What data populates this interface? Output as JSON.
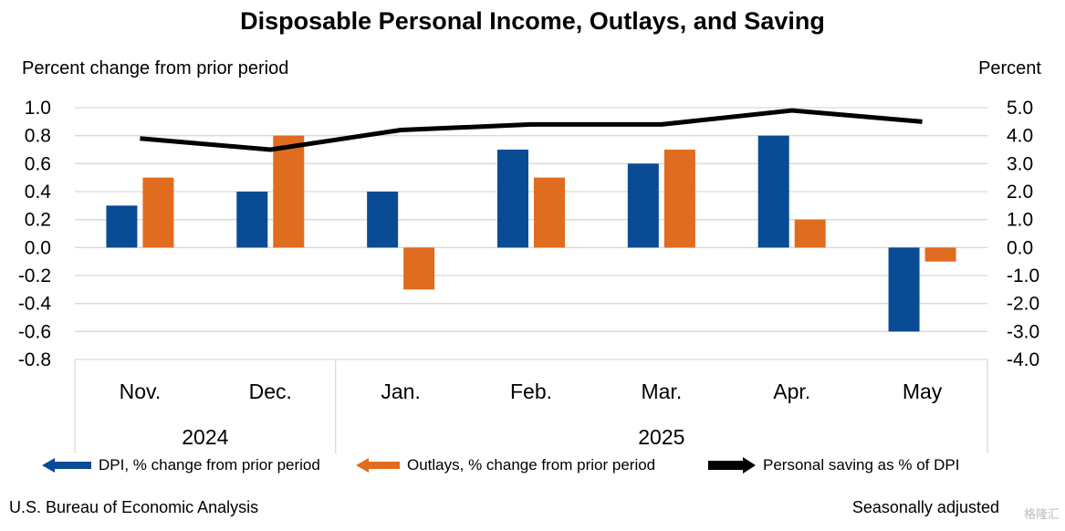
{
  "chart_data": {
    "type": "bar",
    "title": "Disposable Personal Income, Outlays, and Saving",
    "ylabel_left": "Percent change from prior period",
    "ylabel_right": "Percent",
    "categories": [
      "Nov.",
      "Dec.",
      "Jan.",
      "Feb.",
      "Mar.",
      "Apr.",
      "May"
    ],
    "years": [
      {
        "label": "2024",
        "from": 0,
        "to": 1
      },
      {
        "label": "2025",
        "from": 2,
        "to": 6
      }
    ],
    "series": [
      {
        "name": "DPI, % change from prior period",
        "kind": "bar",
        "axis": "left",
        "color": "#0a4b96",
        "values": [
          0.3,
          0.4,
          0.4,
          0.7,
          0.6,
          0.8,
          -0.6
        ]
      },
      {
        "name": "Outlays, % change from prior period",
        "kind": "bar",
        "axis": "left",
        "color": "#e06c1f",
        "values": [
          0.5,
          0.8,
          -0.3,
          0.5,
          0.7,
          0.2,
          -0.1
        ]
      },
      {
        "name": "Personal saving as % of DPI",
        "kind": "line",
        "axis": "right",
        "color": "#000000",
        "values": [
          3.9,
          3.5,
          4.2,
          4.4,
          4.4,
          4.9,
          4.5
        ]
      }
    ],
    "ylim_left": [
      -0.8,
      1.0
    ],
    "ylim_right": [
      -4.0,
      5.0
    ],
    "yticks_left": [
      "1.0",
      "0.8",
      "0.6",
      "0.4",
      "0.2",
      "0.0",
      "-0.2",
      "-0.4",
      "-0.6",
      "-0.8"
    ],
    "yticks_right": [
      "5.0",
      "4.0",
      "3.0",
      "2.0",
      "1.0",
      "0.0",
      "-1.0",
      "-2.0",
      "-3.0",
      "-4.0"
    ],
    "grid": true,
    "legend_position": "bottom"
  },
  "footer": {
    "source": "U.S. Bureau of Economic Analysis",
    "note": "Seasonally adjusted",
    "watermark": "格隆汇"
  }
}
